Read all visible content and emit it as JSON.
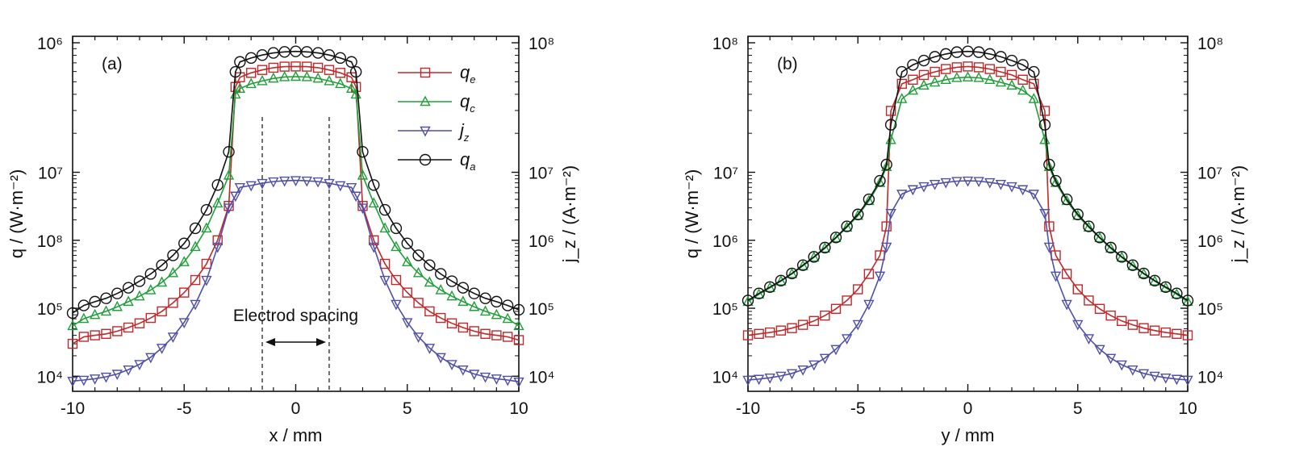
{
  "colors": {
    "q_e": "#c0282a",
    "q_c": "#1f9f3a",
    "j_z": "#4f4fa8",
    "q_a": "#111111"
  },
  "legend": [
    {
      "key": "q_e",
      "base": "q",
      "sub": "e",
      "marker": "square-icon"
    },
    {
      "key": "q_c",
      "base": "q",
      "sub": "c",
      "marker": "triangle-up-icon"
    },
    {
      "key": "j_z",
      "base": "j",
      "sub": "z",
      "marker": "triangle-down-icon"
    },
    {
      "key": "q_a",
      "base": "q",
      "sub": "a",
      "marker": "circle-icon"
    }
  ],
  "chart_data": [
    {
      "type": "line",
      "panel_label": "(a)",
      "xlabel": "x / mm",
      "ylabel_left": "q / (W·m⁻²)",
      "ylabel_right": "j_z / (A·m⁻²)",
      "xlim": [
        -10,
        10
      ],
      "x_ticks": [
        "-10",
        "-5",
        "0",
        "5",
        "10"
      ],
      "y_scale": "log",
      "ylim": [
        6000,
        1000000000
      ],
      "y_ticks_left": [
        "10⁶",
        "10⁷",
        "10⁸",
        "10⁵",
        "10⁴"
      ],
      "y_ticks_right": [
        "10⁸",
        "10⁷",
        "10⁶",
        "10⁵",
        "10⁴"
      ],
      "annotation": {
        "text": "Electrod spacing",
        "x_range": [
          -1.5,
          1.5
        ]
      },
      "legend_position": "top-right",
      "x": [
        -10,
        -9.5,
        -9,
        -8.5,
        -8,
        -7.5,
        -7,
        -6.5,
        -6,
        -5.5,
        -5,
        -4.5,
        -4,
        -3.5,
        -3,
        -2.7,
        -2.5,
        -2,
        -1.5,
        -1,
        -0.5,
        0,
        0.5,
        1,
        1.5,
        2,
        2.5,
        2.7,
        3,
        3.5,
        4,
        4.5,
        5,
        5.5,
        6,
        6.5,
        7,
        7.5,
        8,
        8.5,
        9,
        9.5,
        10
      ],
      "series": [
        {
          "key": "q_e",
          "name": "q_e",
          "values": [
            30000,
            38000,
            40000,
            42000,
            46000,
            52000,
            60000,
            72000,
            90000,
            120000,
            170000,
            260000,
            450000,
            1000000,
            3200000,
            180000000,
            250000000,
            290000000,
            320000000,
            345000000,
            358000000,
            360000000,
            358000000,
            345000000,
            320000000,
            290000000,
            250000000,
            180000000,
            3200000,
            1000000,
            450000,
            260000,
            170000,
            120000,
            90000,
            72000,
            60000,
            52000,
            46000,
            42000,
            40000,
            38000,
            34000
          ]
        },
        {
          "key": "q_c",
          "name": "q_c",
          "values": [
            55000,
            70000,
            80000,
            90000,
            105000,
            125000,
            150000,
            185000,
            240000,
            330000,
            480000,
            800000,
            1500000,
            3500000,
            9000000,
            140000000,
            170000000,
            200000000,
            220000000,
            240000000,
            252000000,
            255000000,
            252000000,
            240000000,
            220000000,
            200000000,
            170000000,
            140000000,
            9000000,
            3500000,
            1500000,
            800000,
            480000,
            330000,
            240000,
            185000,
            150000,
            125000,
            105000,
            90000,
            80000,
            70000,
            55000
          ]
        },
        {
          "key": "j_z",
          "name": "j_z",
          "values": [
            8500,
            8800,
            9200,
            9800,
            10800,
            12500,
            15000,
            19000,
            26000,
            38000,
            62000,
            115000,
            260000,
            800000,
            3000000,
            4500000,
            6000000,
            6400000,
            6900000,
            7300000,
            7500000,
            7600000,
            7500000,
            7300000,
            6900000,
            6400000,
            6000000,
            4500000,
            3000000,
            800000,
            260000,
            115000,
            62000,
            38000,
            26000,
            19000,
            15000,
            12500,
            10800,
            9800,
            9200,
            8800,
            8300
          ]
        },
        {
          "key": "q_a",
          "name": "q_a",
          "values": [
            85000,
            110000,
            125000,
            140000,
            165000,
            200000,
            250000,
            320000,
            430000,
            600000,
            900000,
            1500000,
            2800000,
            6500000,
            20000000,
            300000000,
            420000000,
            480000000,
            530000000,
            570000000,
            590000000,
            600000000,
            590000000,
            570000000,
            530000000,
            480000000,
            420000000,
            300000000,
            20000000,
            6500000,
            2800000,
            1500000,
            900000,
            600000,
            430000,
            320000,
            250000,
            200000,
            165000,
            140000,
            125000,
            110000,
            95000
          ]
        }
      ]
    },
    {
      "type": "line",
      "panel_label": "(b)",
      "xlabel": "y / mm",
      "ylabel_left": "q / (W·m⁻²)",
      "ylabel_right": "j_z / (A·m⁻²)",
      "xlim": [
        -10,
        10
      ],
      "x_ticks": [
        "-10",
        "-5",
        "0",
        "5",
        "10"
      ],
      "y_scale": "log",
      "ylim": [
        6000,
        1000000000
      ],
      "y_ticks_left": [
        "10⁸",
        "10⁷",
        "10⁶",
        "10⁵",
        "10⁴"
      ],
      "y_ticks_right": [
        "10⁸",
        "10⁷",
        "10⁶",
        "10⁵",
        "10⁴"
      ],
      "x": [
        -10,
        -9.5,
        -9,
        -8.5,
        -8,
        -7.5,
        -7,
        -6.5,
        -6,
        -5.5,
        -5,
        -4.5,
        -4,
        -3.7,
        -3.5,
        -3,
        -2.5,
        -2,
        -1.5,
        -1,
        -0.5,
        0,
        0.5,
        1,
        1.5,
        2,
        2.5,
        3,
        3.5,
        3.7,
        4,
        4.5,
        5,
        5.5,
        6,
        6.5,
        7,
        7.5,
        8,
        8.5,
        9,
        9.5,
        10
      ],
      "series": [
        {
          "key": "q_e",
          "name": "q_e",
          "values": [
            40000,
            42000,
            44000,
            47000,
            51000,
            57000,
            65000,
            78000,
            98000,
            130000,
            190000,
            320000,
            600000,
            1600000,
            80000000,
            200000000,
            230000000,
            270000000,
            300000000,
            330000000,
            350000000,
            360000000,
            350000000,
            330000000,
            300000000,
            270000000,
            230000000,
            200000000,
            80000000,
            1600000,
            600000,
            320000,
            190000,
            130000,
            98000,
            78000,
            65000,
            57000,
            51000,
            47000,
            44000,
            42000,
            40000
          ]
        },
        {
          "key": "q_c",
          "name": "q_c",
          "values": [
            125000,
            160000,
            200000,
            250000,
            320000,
            420000,
            560000,
            760000,
            1080000,
            1550000,
            2300000,
            3800000,
            7000000,
            12000000,
            30000000,
            120000000,
            160000000,
            190000000,
            210000000,
            230000000,
            245000000,
            250000000,
            245000000,
            230000000,
            210000000,
            190000000,
            160000000,
            120000000,
            30000000,
            12000000,
            7000000,
            3800000,
            2300000,
            1550000,
            1080000,
            760000,
            560000,
            420000,
            320000,
            250000,
            200000,
            160000,
            125000
          ]
        },
        {
          "key": "j_z",
          "name": "j_z",
          "values": [
            8800,
            9100,
            9500,
            10100,
            11000,
            12500,
            14800,
            18500,
            25000,
            36000,
            58000,
            115000,
            300000,
            800000,
            2500000,
            4800000,
            5600000,
            6200000,
            6700000,
            7100000,
            7400000,
            7500000,
            7400000,
            7100000,
            6700000,
            6200000,
            5600000,
            4800000,
            2500000,
            800000,
            300000,
            115000,
            58000,
            36000,
            25000,
            18500,
            14800,
            12500,
            11000,
            10100,
            9500,
            9100,
            8800
          ]
        },
        {
          "key": "q_a",
          "name": "q_a",
          "values": [
            130000,
            165000,
            205000,
            255000,
            325000,
            430000,
            570000,
            780000,
            1100000,
            1600000,
            2400000,
            4000000,
            7500000,
            13000000,
            50000000,
            300000000,
            380000000,
            440000000,
            500000000,
            550000000,
            585000000,
            600000000,
            585000000,
            550000000,
            500000000,
            440000000,
            380000000,
            300000000,
            50000000,
            13000000,
            7500000,
            4000000,
            2400000,
            1600000,
            1100000,
            780000,
            570000,
            430000,
            325000,
            255000,
            205000,
            165000,
            130000
          ]
        }
      ]
    }
  ]
}
